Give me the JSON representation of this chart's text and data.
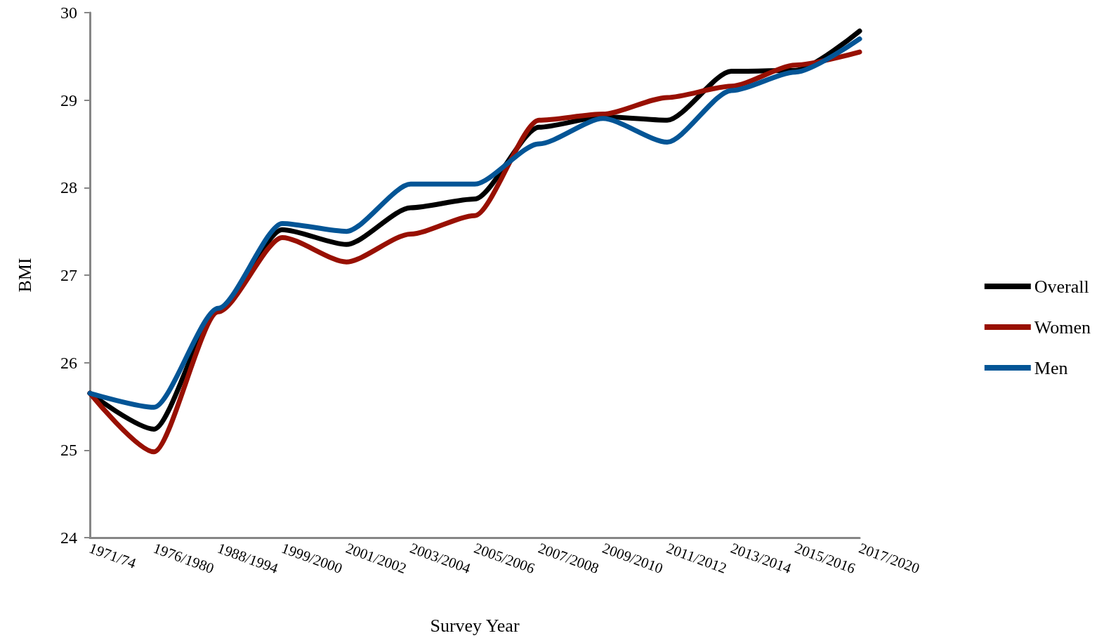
{
  "chart_data": {
    "type": "line",
    "xlabel": "Survey Year",
    "ylabel": "BMI",
    "categories": [
      "1971/74",
      "1976/1980",
      "1988/1994",
      "1999/2000",
      "2001/2002",
      "2003/2004",
      "2005/2006",
      "2007/2008",
      "2009/2010",
      "2011/2012",
      "2013/2014",
      "2015/2016",
      "2017/2020"
    ],
    "ylim": [
      24,
      30
    ],
    "yticks": [
      24,
      25,
      26,
      27,
      28,
      29,
      30
    ],
    "series": [
      {
        "name": "Overall",
        "color": "#000000",
        "values": [
          25.65,
          25.24,
          26.6,
          27.52,
          27.35,
          27.77,
          27.87,
          28.69,
          28.81,
          28.77,
          29.33,
          29.34,
          29.79
        ]
      },
      {
        "name": "Women",
        "color": "#981002",
        "values": [
          25.65,
          24.98,
          26.58,
          27.43,
          27.15,
          27.47,
          27.68,
          28.77,
          28.84,
          29.03,
          29.16,
          29.4,
          29.55
        ]
      },
      {
        "name": "Men",
        "color": "#035596",
        "values": [
          25.65,
          25.49,
          26.62,
          27.59,
          27.5,
          28.04,
          28.04,
          28.5,
          28.79,
          28.52,
          29.11,
          29.32,
          29.7
        ]
      }
    ],
    "legend": "right",
    "grid": false,
    "marker": "none",
    "line_style": "solid"
  }
}
